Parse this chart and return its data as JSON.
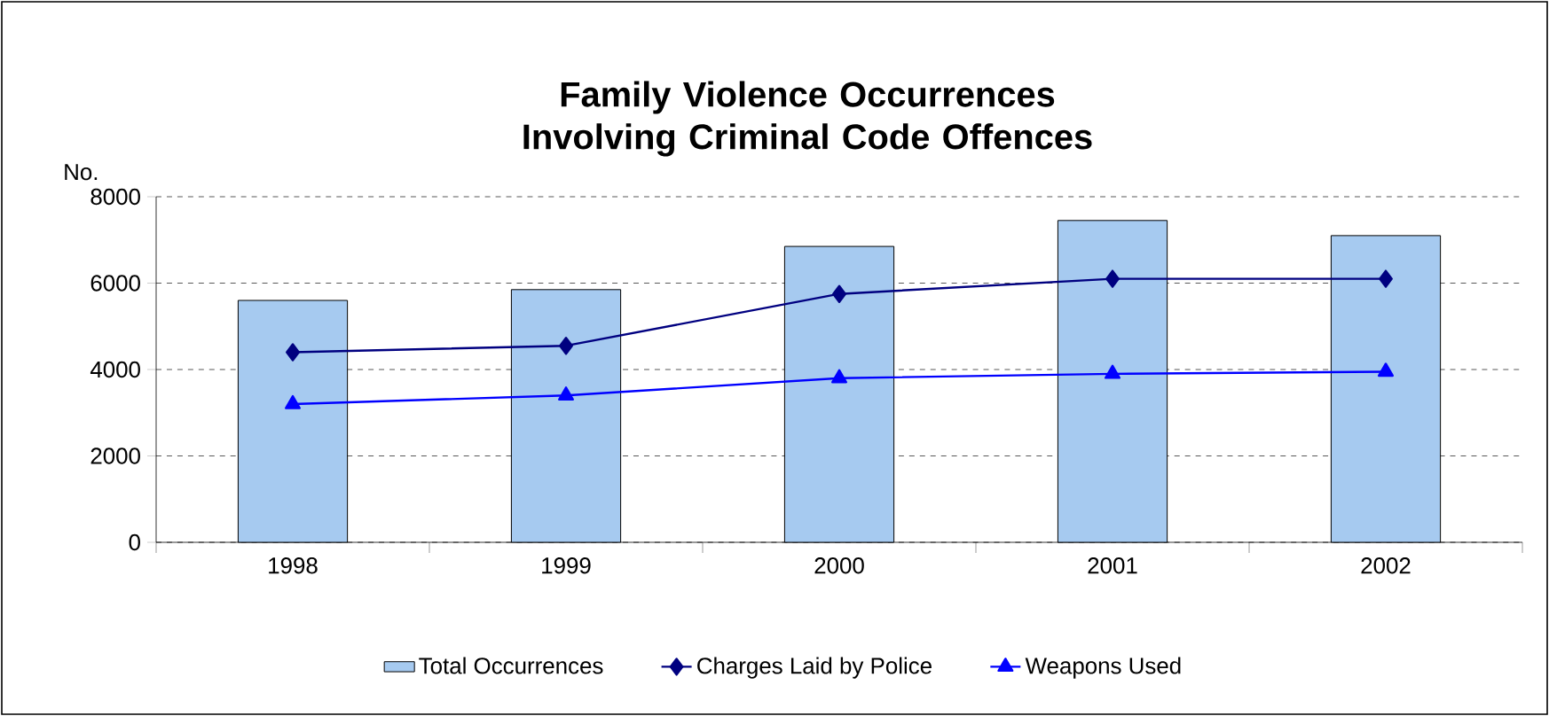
{
  "chart_data": {
    "type": "bar",
    "title": "Family Violence Occurrences Involving Criminal Code Offences",
    "ylabel": "No.",
    "categories": [
      "1998",
      "1999",
      "2000",
      "2001",
      "2002"
    ],
    "series": [
      {
        "name": "Total Occurrences",
        "color": "#a6caf0",
        "values": [
          5600,
          5850,
          6850,
          7450,
          7100
        ]
      },
      {
        "name": "Charges Laid by Police",
        "type": "line",
        "color": "#000080",
        "marker": "diamond",
        "values": [
          4400,
          4550,
          5750,
          6100,
          6100
        ]
      },
      {
        "name": "Weapons Used",
        "type": "line",
        "color": "#0000ff",
        "marker": "triangle",
        "values": [
          3200,
          3400,
          3800,
          3900,
          3950
        ]
      }
    ],
    "ylim": [
      0,
      8000
    ],
    "yticks": [
      0,
      2000,
      4000,
      6000,
      8000
    ],
    "grid": "y",
    "legend": "bottom"
  }
}
